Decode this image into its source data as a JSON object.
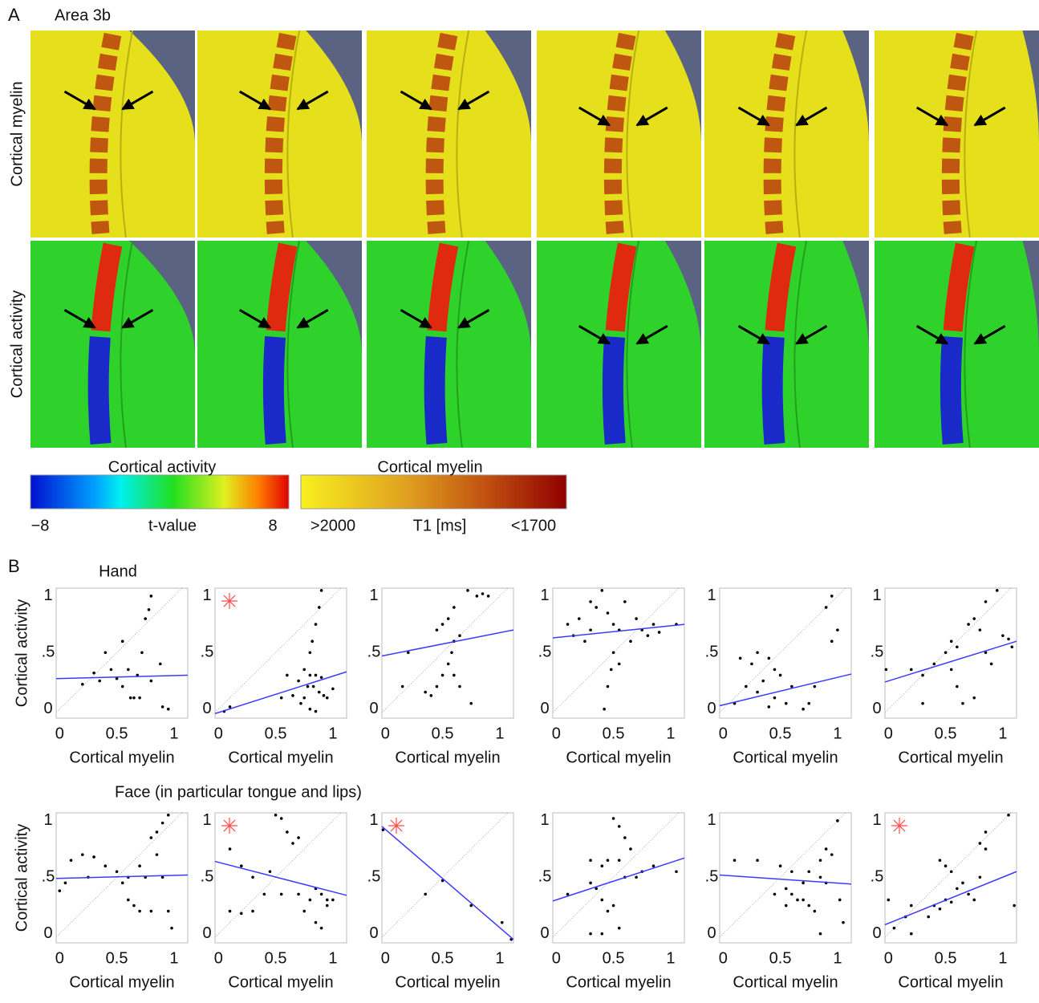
{
  "panel_a": {
    "label": "A",
    "title": "Area 3b",
    "row_labels": [
      "Cortical myelin",
      "Cortical activity"
    ],
    "colorbars": [
      {
        "title": "Cortical activity",
        "labels": [
          "−8",
          "t-value",
          "8"
        ]
      },
      {
        "title": "Cortical myelin",
        "labels": [
          ">2000",
          "T1 [ms]",
          "<1700"
        ]
      }
    ]
  },
  "panel_b": {
    "label": "B",
    "row_titles": [
      "Hand",
      "Face (in particular tongue and lips)"
    ],
    "row_title_colors": [
      "#e02020",
      "#2a7de0"
    ]
  },
  "chart_data": [
    {
      "type": "scatter",
      "ylabel": "Cortical activity",
      "xlabel": "Cortical myelin",
      "significant": false,
      "xlim": [
        -0.03,
        1.12
      ],
      "ylim": [
        -0.08,
        1.07
      ],
      "xticks": [
        0,
        0.5,
        1
      ],
      "yticks": [
        0,
        {
          "value": 0.5,
          "label": ".5"
        },
        1
      ],
      "point_color": "#000000",
      "fit_color": "#3b3bff",
      "x": [
        0.8,
        0.78,
        0.75,
        0.55,
        0.4,
        0.72,
        0.3,
        0.45,
        0.6,
        0.68,
        0.5,
        0.35,
        0.62,
        0.65,
        0.7,
        0.8,
        0.88,
        0.9,
        0.95,
        0.2,
        0.55
      ],
      "y": [
        1.0,
        0.88,
        0.8,
        0.6,
        0.5,
        0.5,
        0.32,
        0.35,
        0.35,
        0.3,
        0.27,
        0.25,
        0.1,
        0.1,
        0.1,
        0.25,
        0.4,
        0.02,
        0.0,
        0.22,
        0.2
      ],
      "fit": {
        "x": [
          -0.03,
          1.12
        ],
        "y": [
          0.27,
          0.3
        ]
      }
    },
    {
      "type": "scatter",
      "xlabel": "Cortical myelin",
      "significant": true,
      "xlim": [
        -0.03,
        1.12
      ],
      "ylim": [
        -0.08,
        1.07
      ],
      "xticks": [
        0,
        0.5,
        1
      ],
      "yticks": [
        0,
        {
          "value": 0.5,
          "label": ".5"
        },
        1
      ],
      "point_color": "#000000",
      "fit_color": "#3b3bff",
      "x": [
        0.9,
        0.88,
        0.85,
        0.82,
        0.8,
        0.75,
        0.8,
        0.85,
        0.9,
        0.7,
        0.78,
        0.83,
        0.88,
        0.92,
        0.75,
        0.65,
        0.55,
        0.95,
        0.72,
        0.8,
        0.85,
        1.0,
        0.1,
        0.05,
        0.6
      ],
      "y": [
        1.05,
        0.9,
        0.75,
        0.6,
        0.5,
        0.35,
        0.3,
        0.3,
        0.28,
        0.25,
        0.2,
        0.2,
        0.15,
        0.12,
        0.1,
        0.12,
        0.1,
        0.1,
        0.05,
        0.0,
        -0.02,
        0.18,
        0.02,
        -0.02,
        0.3
      ],
      "fit": {
        "x": [
          -0.03,
          1.12
        ],
        "y": [
          -0.04,
          0.33
        ]
      }
    },
    {
      "type": "scatter",
      "xlabel": "Cortical myelin",
      "significant": false,
      "xlim": [
        -0.03,
        1.12
      ],
      "ylim": [
        -0.08,
        1.07
      ],
      "xticks": [
        0,
        0.5,
        1
      ],
      "yticks": [
        0,
        {
          "value": 0.5,
          "label": ".5"
        },
        1
      ],
      "point_color": "#000000",
      "fit_color": "#3b3bff",
      "x": [
        0.72,
        0.8,
        0.85,
        0.9,
        0.6,
        0.55,
        0.5,
        0.45,
        0.6,
        0.58,
        0.55,
        0.6,
        0.5,
        0.45,
        0.65,
        0.35,
        0.4,
        0.75,
        0.15,
        0.2,
        0.65
      ],
      "y": [
        1.05,
        1.0,
        1.02,
        1.0,
        0.9,
        0.8,
        0.75,
        0.7,
        0.6,
        0.5,
        0.4,
        0.3,
        0.3,
        0.2,
        0.2,
        0.15,
        0.12,
        0.05,
        0.2,
        0.5,
        0.65
      ],
      "fit": {
        "x": [
          -0.03,
          1.12
        ],
        "y": [
          0.47,
          0.7
        ]
      }
    },
    {
      "type": "scatter",
      "xlabel": "Cortical myelin",
      "significant": false,
      "xlim": [
        -0.03,
        1.12
      ],
      "ylim": [
        -0.08,
        1.07
      ],
      "xticks": [
        0,
        0.5,
        1
      ],
      "yticks": [
        0,
        {
          "value": 0.5,
          "label": ".5"
        },
        1
      ],
      "point_color": "#000000",
      "fit_color": "#3b3bff",
      "x": [
        0.1,
        0.2,
        0.3,
        0.35,
        0.4,
        0.45,
        0.5,
        0.55,
        0.6,
        0.7,
        0.75,
        0.8,
        0.85,
        0.9,
        1.05,
        0.25,
        0.5,
        0.48,
        0.45,
        0.42,
        0.55,
        0.65,
        0.3,
        0.15
      ],
      "y": [
        0.75,
        0.8,
        0.7,
        0.9,
        1.05,
        0.85,
        0.75,
        0.7,
        0.95,
        0.8,
        0.7,
        0.65,
        0.75,
        0.68,
        0.75,
        0.6,
        0.5,
        0.35,
        0.2,
        0.0,
        0.4,
        0.6,
        0.95,
        0.65
      ],
      "fit": {
        "x": [
          -0.03,
          1.12
        ],
        "y": [
          0.63,
          0.75
        ]
      }
    },
    {
      "type": "scatter",
      "xlabel": "Cortical myelin",
      "significant": false,
      "xlim": [
        -0.03,
        1.12
      ],
      "ylim": [
        -0.08,
        1.07
      ],
      "xticks": [
        0,
        0.5,
        1
      ],
      "yticks": [
        0,
        {
          "value": 0.5,
          "label": ".5"
        },
        1
      ],
      "point_color": "#000000",
      "fit_color": "#3b3bff",
      "x": [
        0.95,
        0.9,
        1.0,
        0.95,
        0.3,
        0.4,
        0.25,
        0.45,
        0.35,
        0.5,
        0.6,
        0.2,
        0.3,
        0.45,
        0.55,
        0.7,
        0.75,
        0.1,
        0.4,
        0.8,
        0.15
      ],
      "y": [
        1.0,
        0.9,
        0.7,
        0.6,
        0.5,
        0.45,
        0.4,
        0.35,
        0.25,
        0.3,
        0.2,
        0.2,
        0.15,
        0.1,
        0.05,
        0.0,
        0.05,
        0.05,
        0.02,
        0.2,
        0.45
      ],
      "fit": {
        "x": [
          -0.03,
          1.12
        ],
        "y": [
          0.03,
          0.31
        ]
      }
    },
    {
      "type": "scatter",
      "xlabel": "Cortical myelin",
      "significant": false,
      "xlim": [
        -0.03,
        1.12
      ],
      "ylim": [
        -0.08,
        1.07
      ],
      "xticks": [
        0,
        0.5,
        1
      ],
      "yticks": [
        0,
        {
          "value": 0.5,
          "label": ".5"
        },
        1
      ],
      "point_color": "#000000",
      "fit_color": "#3b3bff",
      "x": [
        0.95,
        0.85,
        0.75,
        0.7,
        0.8,
        0.6,
        0.55,
        0.5,
        1.0,
        1.05,
        1.08,
        0.85,
        0.9,
        0.4,
        0.55,
        0.3,
        0.6,
        0.65,
        0.75,
        0.3,
        -0.02,
        0.2
      ],
      "y": [
        1.05,
        0.95,
        0.8,
        0.75,
        0.7,
        0.55,
        0.6,
        0.5,
        0.65,
        0.62,
        0.55,
        0.5,
        0.4,
        0.4,
        0.35,
        0.3,
        0.2,
        0.05,
        0.1,
        0.05,
        0.35,
        0.35
      ],
      "fit": {
        "x": [
          -0.03,
          1.12
        ],
        "y": [
          0.24,
          0.6
        ]
      }
    },
    {
      "type": "scatter",
      "ylabel": "Cortical activity",
      "xlabel": "Cortical myelin",
      "significant": false,
      "xlim": [
        -0.03,
        1.12
      ],
      "ylim": [
        -0.08,
        1.07
      ],
      "xticks": [
        0,
        0.5,
        1
      ],
      "yticks": [
        0,
        {
          "value": 0.5,
          "label": ".5"
        },
        1
      ],
      "point_color": "#000000",
      "fit_color": "#3b3bff",
      "x": [
        0.95,
        0.9,
        0.85,
        0.8,
        0.1,
        0.2,
        0.3,
        0.4,
        0.5,
        0.6,
        0.7,
        0.75,
        0.55,
        0.6,
        0.65,
        0.7,
        0.8,
        0.05,
        0.0,
        0.9,
        0.95,
        0.98,
        0.25,
        0.85
      ],
      "y": [
        1.05,
        0.98,
        0.9,
        0.85,
        0.65,
        0.7,
        0.68,
        0.6,
        0.55,
        0.5,
        0.6,
        0.5,
        0.45,
        0.3,
        0.25,
        0.2,
        0.2,
        0.45,
        0.38,
        0.5,
        0.2,
        0.05,
        0.5,
        0.7
      ],
      "fit": {
        "x": [
          -0.03,
          1.12
        ],
        "y": [
          0.49,
          0.52
        ]
      }
    },
    {
      "type": "scatter",
      "xlabel": "Cortical myelin",
      "significant": true,
      "xlim": [
        -0.03,
        1.12
      ],
      "ylim": [
        -0.08,
        1.07
      ],
      "xticks": [
        0,
        0.5,
        1
      ],
      "yticks": [
        0,
        {
          "value": 0.5,
          "label": ".5"
        },
        1
      ],
      "point_color": "#000000",
      "fit_color": "#3b3bff",
      "x": [
        0.5,
        0.55,
        0.6,
        0.65,
        0.7,
        0.1,
        0.2,
        0.3,
        0.45,
        0.85,
        0.9,
        0.95,
        1.0,
        0.55,
        0.7,
        0.8,
        0.3,
        0.1,
        0.2,
        0.75,
        0.85,
        0.9,
        0.95,
        0.4
      ],
      "y": [
        1.05,
        1.02,
        0.9,
        0.8,
        0.85,
        0.75,
        0.6,
        0.5,
        0.55,
        0.4,
        0.35,
        0.3,
        0.3,
        0.35,
        0.35,
        0.3,
        0.2,
        0.2,
        0.18,
        0.2,
        0.1,
        0.05,
        0.25,
        0.35
      ],
      "fit": {
        "x": [
          -0.03,
          1.12
        ],
        "y": [
          0.64,
          0.34
        ]
      }
    },
    {
      "type": "scatter",
      "xlabel": "Cortical myelin",
      "significant": true,
      "xlim": [
        -0.03,
        1.12
      ],
      "ylim": [
        -0.08,
        1.07
      ],
      "xticks": [
        0,
        0.5,
        1
      ],
      "yticks": [
        0,
        {
          "value": 0.5,
          "label": ".5"
        },
        1
      ],
      "point_color": "#000000",
      "fit_color": "#3b3bff",
      "x": [
        -0.02,
        0.35,
        0.5,
        0.75,
        1.02,
        1.1
      ],
      "y": [
        0.92,
        0.35,
        0.47,
        0.25,
        0.1,
        -0.05
      ],
      "fit": {
        "x": [
          -0.03,
          1.12
        ],
        "y": [
          0.95,
          -0.05
        ]
      }
    },
    {
      "type": "scatter",
      "xlabel": "Cortical myelin",
      "significant": false,
      "xlim": [
        -0.03,
        1.12
      ],
      "ylim": [
        -0.08,
        1.07
      ],
      "xticks": [
        0,
        0.5,
        1
      ],
      "yticks": [
        0,
        {
          "value": 0.5,
          "label": ".5"
        },
        1
      ],
      "point_color": "#000000",
      "fit_color": "#3b3bff",
      "x": [
        0.5,
        0.55,
        0.6,
        0.65,
        0.55,
        0.3,
        0.4,
        0.45,
        0.6,
        0.75,
        0.85,
        1.05,
        0.3,
        0.35,
        0.4,
        0.5,
        0.45,
        0.55,
        0.3,
        0.4,
        0.1,
        0.7
      ],
      "y": [
        1.02,
        0.95,
        0.85,
        0.75,
        0.65,
        0.65,
        0.6,
        0.65,
        0.5,
        0.55,
        0.6,
        0.55,
        0.45,
        0.4,
        0.3,
        0.25,
        0.2,
        0.05,
        0.0,
        0.0,
        0.35,
        0.5
      ],
      "fit": {
        "x": [
          -0.03,
          1.12
        ],
        "y": [
          0.29,
          0.67
        ]
      }
    },
    {
      "type": "scatter",
      "xlabel": "Cortical myelin",
      "significant": false,
      "xlim": [
        -0.03,
        1.12
      ],
      "ylim": [
        -0.08,
        1.07
      ],
      "xticks": [
        0,
        0.5,
        1
      ],
      "yticks": [
        0,
        {
          "value": 0.5,
          "label": ".5"
        },
        1
      ],
      "point_color": "#000000",
      "fit_color": "#3b3bff",
      "x": [
        1.0,
        0.9,
        0.95,
        0.85,
        0.75,
        0.85,
        0.9,
        0.1,
        0.3,
        0.5,
        0.6,
        0.55,
        0.6,
        0.65,
        0.7,
        0.75,
        0.55,
        0.8,
        0.85,
        1.05,
        1.02,
        0.45,
        0.7
      ],
      "y": [
        1.0,
        0.75,
        0.7,
        0.65,
        0.55,
        0.5,
        0.45,
        0.65,
        0.65,
        0.6,
        0.55,
        0.4,
        0.35,
        0.3,
        0.3,
        0.25,
        0.25,
        0.2,
        0.0,
        0.1,
        0.3,
        0.35,
        0.45
      ],
      "fit": {
        "x": [
          -0.03,
          1.12
        ],
        "y": [
          0.52,
          0.44
        ]
      }
    },
    {
      "type": "scatter",
      "xlabel": "Cortical myelin",
      "significant": true,
      "xlim": [
        -0.03,
        1.12
      ],
      "ylim": [
        -0.08,
        1.07
      ],
      "xticks": [
        0,
        0.5,
        1
      ],
      "yticks": [
        0,
        {
          "value": 0.5,
          "label": ".5"
        },
        1
      ],
      "point_color": "#000000",
      "fit_color": "#3b3bff",
      "x": [
        1.05,
        0.85,
        0.8,
        0.85,
        0.45,
        0.5,
        0.55,
        0.6,
        0.65,
        0.7,
        0.75,
        0.5,
        0.4,
        0.45,
        0.35,
        0.55,
        0.2,
        0.15,
        0.05,
        0.2,
        1.1,
        0.0,
        0.8
      ],
      "y": [
        1.05,
        0.9,
        0.8,
        0.75,
        0.65,
        0.6,
        0.55,
        0.4,
        0.45,
        0.35,
        0.3,
        0.3,
        0.25,
        0.22,
        0.15,
        0.28,
        0.25,
        0.15,
        0.05,
        0.0,
        0.25,
        0.3,
        0.5
      ],
      "fit": {
        "x": [
          -0.03,
          1.12
        ],
        "y": [
          0.08,
          0.55
        ]
      }
    }
  ]
}
